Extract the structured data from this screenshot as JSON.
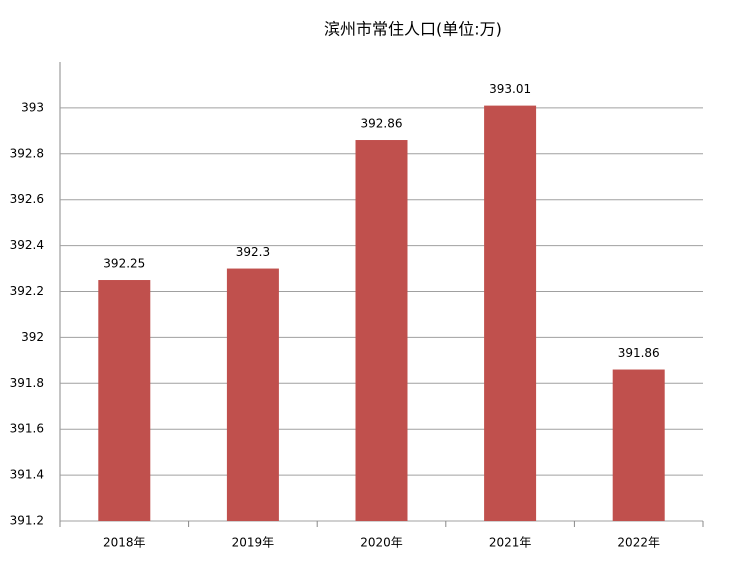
{
  "chart_data": {
    "type": "bar",
    "title": "滨州市常住人口(单位:万)",
    "categories": [
      "2018年",
      "2019年",
      "2020年",
      "2021年",
      "2022年"
    ],
    "values": [
      392.25,
      392.3,
      392.86,
      393.01,
      391.86
    ],
    "color": "#c0504d",
    "ylim": [
      391.2,
      393.2
    ],
    "yticks": [
      391.2,
      391.4,
      391.6,
      391.8,
      392,
      392.2,
      392.4,
      392.6,
      392.8,
      393
    ],
    "grid": true
  }
}
